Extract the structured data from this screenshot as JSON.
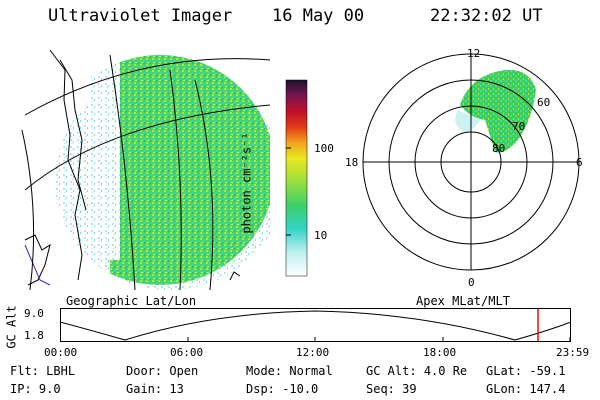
{
  "header": {
    "instrument": "Ultraviolet Imager",
    "date": "16 May 00",
    "time": "22:32:02 UT"
  },
  "colorbar": {
    "label": "photon cm⁻²s⁻¹",
    "ticks": [
      "100",
      "10"
    ]
  },
  "polar_plot": {
    "mlt_labels": [
      "12",
      "18",
      "6",
      "0"
    ],
    "lat_labels": [
      "60",
      "70",
      "80"
    ]
  },
  "panel_labels": {
    "left": "Geographic Lat/Lon",
    "right": "Apex MLat/MLT"
  },
  "altitude_strip": {
    "ylabel": "GC Alt",
    "ymax": "9.0",
    "ymin": "1.8",
    "time_ticks": [
      "00:00",
      "06:00",
      "12:00",
      "18:00",
      "23:59"
    ],
    "marker_color": "#ff0000"
  },
  "info": {
    "row1": [
      {
        "label": "Flt:",
        "value": "LBHL"
      },
      {
        "label": "Door:",
        "value": "Open"
      },
      {
        "label": "Mode:",
        "value": "Normal"
      },
      {
        "label": "GC Alt:",
        "value": "4.0 Re"
      },
      {
        "label": "GLat:",
        "value": "-59.1"
      }
    ],
    "row2": [
      {
        "label": "IP:",
        "value": "9.0"
      },
      {
        "label": "Gain:",
        "value": "13"
      },
      {
        "label": "Dsp:",
        "value": "-10.0"
      },
      {
        "label": "Seq:",
        "value": "39"
      },
      {
        "label": "GLon:",
        "value": "147.4"
      }
    ]
  },
  "colors": {
    "aurora_green": "#3ccf55",
    "aurora_cyan": "#43d8c8",
    "aurora_yellow": "#c8e02a",
    "marker_red": "#ff0000"
  }
}
